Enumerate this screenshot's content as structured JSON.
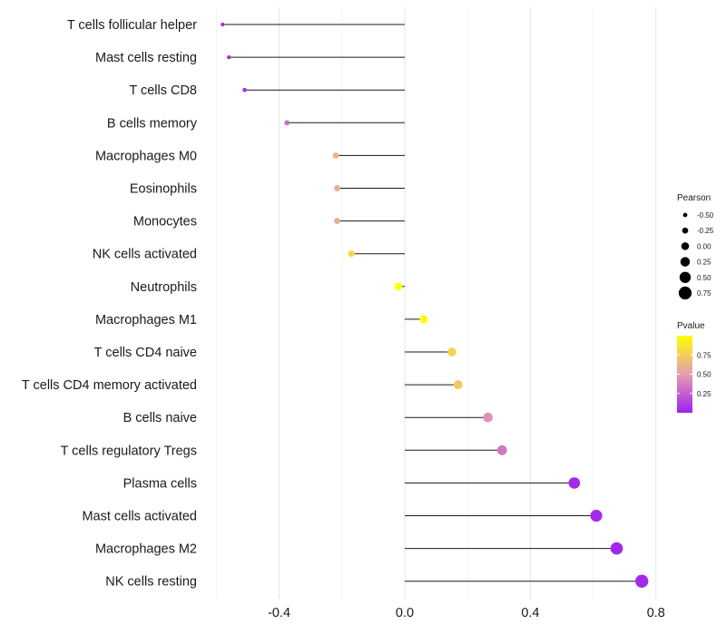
{
  "chart_data": {
    "type": "lollipop",
    "title": "",
    "xlabel": "",
    "ylabel": "",
    "xlim": [
      -0.6,
      0.8
    ],
    "x_ticks": [
      -0.4,
      0.0,
      0.4,
      0.8
    ],
    "x_tick_labels": [
      "-0.4",
      "0.0",
      "0.4",
      "0.8"
    ],
    "grid": true,
    "categories": [
      "T cells follicular helper",
      "Mast cells resting",
      "T cells CD8",
      "B cells memory",
      "Macrophages M0",
      "Eosinophils",
      "Monocytes",
      "NK cells activated",
      "Neutrophils",
      "Macrophages M1",
      "T cells CD4 naive",
      "T cells CD4 memory activated",
      "B cells naive",
      "T cells regulatory  Tregs",
      "Plasma cells",
      "Mast cells activated",
      "Macrophages M2",
      "NK cells resting"
    ],
    "pearson": [
      -0.58,
      -0.56,
      -0.51,
      -0.375,
      -0.22,
      -0.215,
      -0.215,
      -0.17,
      -0.02,
      0.06,
      0.15,
      0.17,
      0.265,
      0.31,
      0.54,
      0.61,
      0.675,
      0.755
    ],
    "pvalue": [
      0.03,
      0.04,
      0.05,
      0.3,
      0.65,
      0.58,
      0.58,
      0.8,
      1.0,
      0.98,
      0.78,
      0.72,
      0.45,
      0.35,
      0.04,
      0.04,
      0.03,
      0.03
    ],
    "size_legend": {
      "title": "Pearson",
      "breaks": [
        -0.5,
        -0.25,
        0.0,
        0.25,
        0.5,
        0.75
      ],
      "labels": [
        "-0.50",
        "-0.25",
        "0.00",
        "0.25",
        "0.50",
        "0.75"
      ]
    },
    "color_legend": {
      "title": "Pvalue",
      "breaks": [
        0.25,
        0.5,
        0.75
      ],
      "labels": [
        "0.25",
        "0.50",
        "0.75"
      ],
      "low_color": "#a020f0",
      "mid_color": "#e69db2",
      "high_color": "#ffff00"
    }
  }
}
